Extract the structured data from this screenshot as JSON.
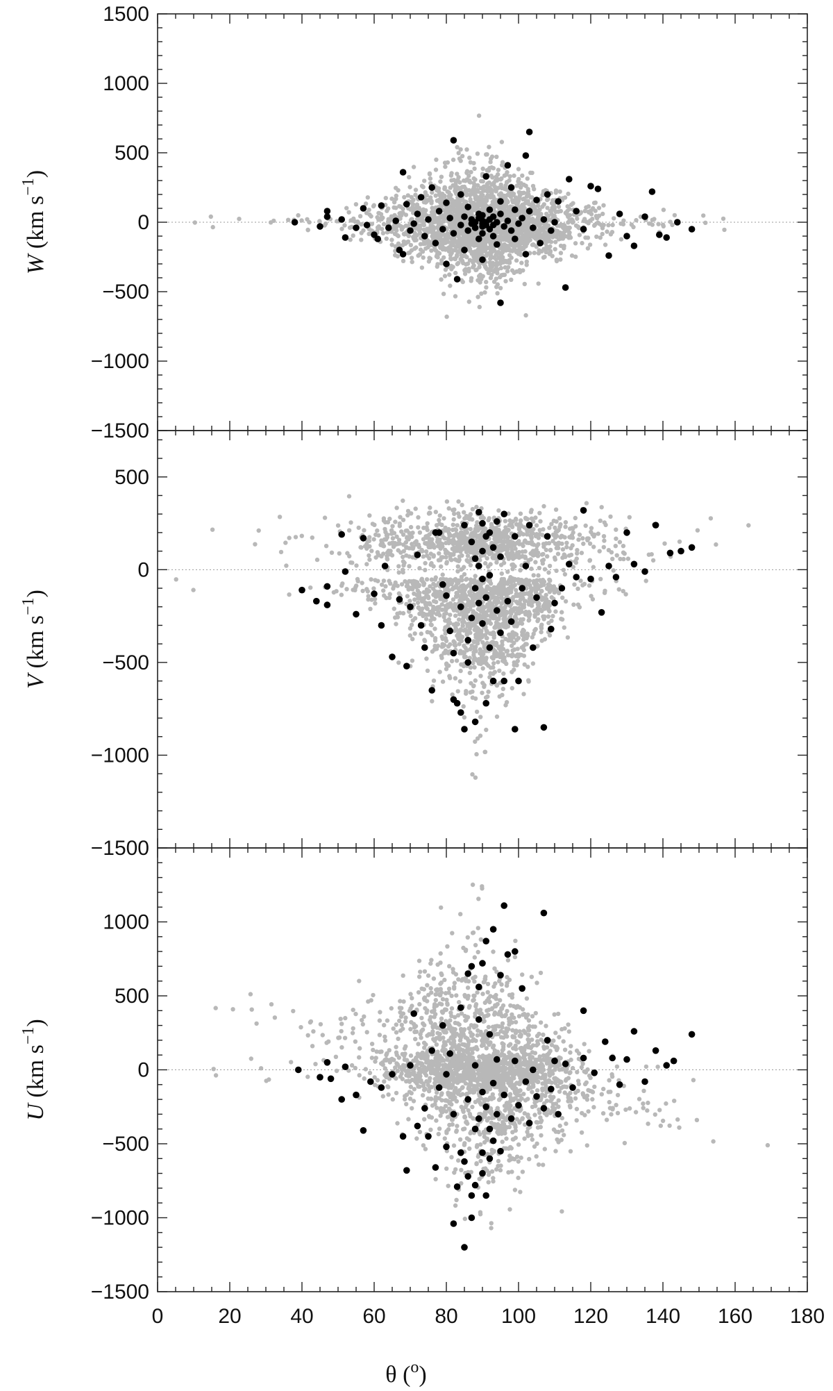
{
  "chart_data": {
    "type": "scatter",
    "xlabel_symbol": "θ",
    "xlabel_unit": "o",
    "xlim": [
      0,
      180
    ],
    "xticks": [
      0,
      20,
      40,
      60,
      80,
      100,
      120,
      140,
      160,
      180
    ],
    "point_colors": {
      "gray": "#b8b8b8",
      "black": "#000000"
    },
    "panels": [
      {
        "ylabel_symbol": "W",
        "ylabel_unit": "km s",
        "ylabel_exp": "−1",
        "ylim": [
          -1500,
          1500
        ],
        "yticks": [
          -1500,
          -1000,
          -500,
          0,
          500,
          1000,
          1500
        ],
        "ytick_labels": [
          "−1500",
          "−1000",
          "−500",
          "0",
          "500",
          "1000",
          "1500"
        ],
        "black_points": [
          [
            38,
            0
          ],
          [
            45,
            -30
          ],
          [
            47,
            40
          ],
          [
            47,
            80
          ],
          [
            51,
            20
          ],
          [
            52,
            -110
          ],
          [
            55,
            -40
          ],
          [
            57,
            100
          ],
          [
            58,
            -20
          ],
          [
            60,
            -90
          ],
          [
            61,
            -120
          ],
          [
            62,
            120
          ],
          [
            64,
            -40
          ],
          [
            66,
            10
          ],
          [
            67,
            -200
          ],
          [
            68,
            360
          ],
          [
            68,
            -230
          ],
          [
            69,
            130
          ],
          [
            70,
            -60
          ],
          [
            71,
            -10
          ],
          [
            72,
            60
          ],
          [
            73,
            180
          ],
          [
            74,
            -100
          ],
          [
            75,
            20
          ],
          [
            76,
            250
          ],
          [
            77,
            -150
          ],
          [
            78,
            80
          ],
          [
            79,
            -50
          ],
          [
            80,
            140
          ],
          [
            80,
            -300
          ],
          [
            81,
            30
          ],
          [
            82,
            590
          ],
          [
            82,
            -80
          ],
          [
            83,
            -410
          ],
          [
            84,
            200
          ],
          [
            84,
            -20
          ],
          [
            85,
            40
          ],
          [
            85,
            -200
          ],
          [
            86,
            110
          ],
          [
            86,
            -60
          ],
          [
            87,
            -10
          ],
          [
            87,
            20
          ],
          [
            88,
            0
          ],
          [
            88,
            -40
          ],
          [
            89,
            60
          ],
          [
            89,
            -120
          ],
          [
            89,
            30
          ],
          [
            90,
            -10
          ],
          [
            90,
            -30
          ],
          [
            90,
            10
          ],
          [
            90,
            50
          ],
          [
            90,
            -80
          ],
          [
            90,
            -270
          ],
          [
            91,
            -20
          ],
          [
            91,
            330
          ],
          [
            91,
            0
          ],
          [
            92,
            20
          ],
          [
            92,
            -50
          ],
          [
            92,
            90
          ],
          [
            93,
            -100
          ],
          [
            93,
            40
          ],
          [
            93,
            -20
          ],
          [
            94,
            0
          ],
          [
            94,
            -160
          ],
          [
            95,
            150
          ],
          [
            95,
            -580
          ],
          [
            95,
            60
          ],
          [
            96,
            -30
          ],
          [
            97,
            410
          ],
          [
            97,
            10
          ],
          [
            98,
            -60
          ],
          [
            98,
            250
          ],
          [
            99,
            90
          ],
          [
            99,
            -120
          ],
          [
            100,
            -10
          ],
          [
            101,
            30
          ],
          [
            102,
            480
          ],
          [
            102,
            -230
          ],
          [
            103,
            650
          ],
          [
            103,
            80
          ],
          [
            104,
            -40
          ],
          [
            105,
            160
          ],
          [
            106,
            -150
          ],
          [
            107,
            20
          ],
          [
            108,
            200
          ],
          [
            109,
            -60
          ],
          [
            110,
            0
          ],
          [
            111,
            150
          ],
          [
            113,
            -470
          ],
          [
            114,
            310
          ],
          [
            116,
            80
          ],
          [
            118,
            -50
          ],
          [
            120,
            260
          ],
          [
            122,
            240
          ],
          [
            125,
            -240
          ],
          [
            128,
            60
          ],
          [
            130,
            -100
          ],
          [
            132,
            -170
          ],
          [
            135,
            40
          ],
          [
            137,
            220
          ],
          [
            139,
            -90
          ],
          [
            141,
            -110
          ],
          [
            144,
            0
          ],
          [
            148,
            -50
          ]
        ]
      },
      {
        "ylabel_symbol": "V",
        "ylabel_unit": "km s",
        "ylabel_exp": "−1",
        "ylim": [
          -1500,
          750
        ],
        "yticks": [
          -1500,
          -1000,
          -500,
          0,
          500
        ],
        "ytick_labels": [
          "−1500",
          "−1000",
          "−500",
          "0",
          "500"
        ],
        "black_points": [
          [
            40,
            -110
          ],
          [
            44,
            -170
          ],
          [
            47,
            -190
          ],
          [
            47,
            -90
          ],
          [
            51,
            190
          ],
          [
            52,
            -10
          ],
          [
            55,
            -240
          ],
          [
            57,
            170
          ],
          [
            60,
            -130
          ],
          [
            62,
            -300
          ],
          [
            63,
            20
          ],
          [
            65,
            -470
          ],
          [
            67,
            -160
          ],
          [
            69,
            -520
          ],
          [
            70,
            -200
          ],
          [
            72,
            80
          ],
          [
            73,
            -300
          ],
          [
            74,
            -420
          ],
          [
            76,
            -650
          ],
          [
            77,
            200
          ],
          [
            78,
            200
          ],
          [
            79,
            -80
          ],
          [
            80,
            -140
          ],
          [
            81,
            -330
          ],
          [
            82,
            -450
          ],
          [
            82,
            -700
          ],
          [
            83,
            -720
          ],
          [
            84,
            -770
          ],
          [
            84,
            -200
          ],
          [
            85,
            -860
          ],
          [
            85,
            240
          ],
          [
            86,
            -500
          ],
          [
            86,
            -380
          ],
          [
            87,
            -260
          ],
          [
            87,
            150
          ],
          [
            88,
            -100
          ],
          [
            88,
            60
          ],
          [
            88,
            -820
          ],
          [
            89,
            310
          ],
          [
            89,
            -180
          ],
          [
            89,
            20
          ],
          [
            90,
            250
          ],
          [
            90,
            100
          ],
          [
            90,
            -50
          ],
          [
            90,
            -290
          ],
          [
            91,
            180
          ],
          [
            91,
            -150
          ],
          [
            91,
            -720
          ],
          [
            92,
            200
          ],
          [
            92,
            -30
          ],
          [
            92,
            -420
          ],
          [
            93,
            -600
          ],
          [
            93,
            120
          ],
          [
            94,
            260
          ],
          [
            94,
            -220
          ],
          [
            95,
            70
          ],
          [
            95,
            -340
          ],
          [
            96,
            -600
          ],
          [
            96,
            300
          ],
          [
            97,
            -170
          ],
          [
            98,
            -280
          ],
          [
            99,
            -860
          ],
          [
            99,
            180
          ],
          [
            100,
            -600
          ],
          [
            101,
            -100
          ],
          [
            102,
            20
          ],
          [
            103,
            240
          ],
          [
            104,
            -420
          ],
          [
            105,
            -150
          ],
          [
            107,
            -850
          ],
          [
            108,
            180
          ],
          [
            109,
            -320
          ],
          [
            110,
            -180
          ],
          [
            112,
            -100
          ],
          [
            114,
            30
          ],
          [
            116,
            -40
          ],
          [
            118,
            320
          ],
          [
            120,
            -50
          ],
          [
            123,
            -230
          ],
          [
            125,
            20
          ],
          [
            127,
            -40
          ],
          [
            130,
            200
          ],
          [
            132,
            30
          ],
          [
            135,
            -10
          ],
          [
            138,
            240
          ],
          [
            142,
            90
          ],
          [
            145,
            100
          ],
          [
            148,
            120
          ]
        ]
      },
      {
        "ylabel_symbol": "U",
        "ylabel_unit": "km s",
        "ylabel_exp": "−1",
        "ylim": [
          -1500,
          1500
        ],
        "yticks": [
          -1500,
          -1000,
          -500,
          0,
          500,
          1000
        ],
        "ytick_labels": [
          "−1500",
          "−1000",
          "−500",
          "0",
          "500",
          "1000"
        ],
        "black_points": [
          [
            39,
            0
          ],
          [
            45,
            -50
          ],
          [
            47,
            50
          ],
          [
            48,
            -60
          ],
          [
            51,
            -200
          ],
          [
            52,
            20
          ],
          [
            55,
            -170
          ],
          [
            57,
            -410
          ],
          [
            59,
            -80
          ],
          [
            62,
            -120
          ],
          [
            65,
            -30
          ],
          [
            68,
            -450
          ],
          [
            69,
            -680
          ],
          [
            70,
            30
          ],
          [
            71,
            380
          ],
          [
            72,
            -380
          ],
          [
            74,
            -260
          ],
          [
            75,
            -450
          ],
          [
            76,
            130
          ],
          [
            77,
            -660
          ],
          [
            78,
            -120
          ],
          [
            79,
            300
          ],
          [
            80,
            -30
          ],
          [
            80,
            -520
          ],
          [
            81,
            110
          ],
          [
            82,
            -300
          ],
          [
            82,
            -1040
          ],
          [
            83,
            -790
          ],
          [
            84,
            -560
          ],
          [
            84,
            420
          ],
          [
            85,
            -620
          ],
          [
            85,
            -1200
          ],
          [
            86,
            -720
          ],
          [
            86,
            650
          ],
          [
            86,
            -200
          ],
          [
            87,
            -850
          ],
          [
            87,
            -1000
          ],
          [
            87,
            700
          ],
          [
            88,
            -400
          ],
          [
            88,
            30
          ],
          [
            88,
            -780
          ],
          [
            89,
            560
          ],
          [
            89,
            -330
          ],
          [
            89,
            340
          ],
          [
            90,
            -560
          ],
          [
            90,
            -150
          ],
          [
            90,
            720
          ],
          [
            90,
            -700
          ],
          [
            91,
            -250
          ],
          [
            91,
            870
          ],
          [
            91,
            -850
          ],
          [
            92,
            -400
          ],
          [
            92,
            240
          ],
          [
            92,
            -600
          ],
          [
            93,
            -90
          ],
          [
            93,
            950
          ],
          [
            93,
            -480
          ],
          [
            94,
            70
          ],
          [
            94,
            -300
          ],
          [
            95,
            640
          ],
          [
            95,
            -550
          ],
          [
            96,
            1110
          ],
          [
            96,
            -170
          ],
          [
            97,
            780
          ],
          [
            98,
            -330
          ],
          [
            99,
            800
          ],
          [
            99,
            60
          ],
          [
            100,
            -240
          ],
          [
            101,
            550
          ],
          [
            102,
            -80
          ],
          [
            103,
            -360
          ],
          [
            104,
            0
          ],
          [
            105,
            -180
          ],
          [
            107,
            1060
          ],
          [
            107,
            -260
          ],
          [
            108,
            200
          ],
          [
            109,
            -130
          ],
          [
            110,
            60
          ],
          [
            111,
            -300
          ],
          [
            113,
            40
          ],
          [
            115,
            -120
          ],
          [
            118,
            400
          ],
          [
            118,
            80
          ],
          [
            121,
            -20
          ],
          [
            124,
            190
          ],
          [
            126,
            80
          ],
          [
            128,
            -100
          ],
          [
            130,
            70
          ],
          [
            132,
            260
          ],
          [
            135,
            -80
          ],
          [
            138,
            130
          ],
          [
            141,
            30
          ],
          [
            143,
            60
          ],
          [
            148,
            240
          ]
        ]
      }
    ]
  }
}
